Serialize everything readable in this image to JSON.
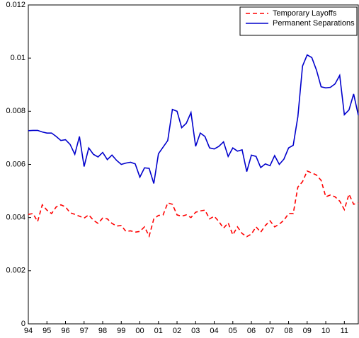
{
  "chart_data": {
    "type": "line",
    "x": [
      1994,
      1994.25,
      1994.5,
      1994.75,
      1995,
      1995.25,
      1995.5,
      1995.75,
      1996,
      1996.25,
      1996.5,
      1996.75,
      1997,
      1997.25,
      1997.5,
      1997.75,
      1998,
      1998.25,
      1998.5,
      1998.75,
      1999,
      1999.25,
      1999.5,
      1999.75,
      2000,
      2000.25,
      2000.5,
      2000.75,
      2001,
      2001.25,
      2001.5,
      2001.75,
      2002,
      2002.25,
      2002.5,
      2002.75,
      2003,
      2003.25,
      2003.5,
      2003.75,
      2004,
      2004.25,
      2004.5,
      2004.75,
      2005,
      2005.25,
      2005.5,
      2005.75,
      2006,
      2006.25,
      2006.5,
      2006.75,
      2007,
      2007.25,
      2007.5,
      2007.75,
      2008,
      2008.25,
      2008.5,
      2008.75,
      2009,
      2009.25,
      2009.5,
      2009.75,
      2010,
      2010.25,
      2010.5,
      2010.75,
      2011,
      2011.25,
      2011.5,
      2011.75
    ],
    "series": [
      {
        "name": "Temporary Layoffs",
        "color": "#ff0000",
        "linestyle": "dashed",
        "values": [
          0.00412,
          0.00415,
          0.00385,
          0.00448,
          0.00428,
          0.00415,
          0.0044,
          0.00448,
          0.0044,
          0.00418,
          0.00412,
          0.00405,
          0.00398,
          0.0041,
          0.0039,
          0.00378,
          0.00398,
          0.00395,
          0.00378,
          0.00368,
          0.0037,
          0.00348,
          0.0035,
          0.00345,
          0.00348,
          0.00365,
          0.0033,
          0.00395,
          0.00408,
          0.0041,
          0.00455,
          0.0045,
          0.0041,
          0.00405,
          0.0041,
          0.004,
          0.0042,
          0.00425,
          0.00428,
          0.00395,
          0.00405,
          0.00385,
          0.0036,
          0.0038,
          0.00335,
          0.00365,
          0.0034,
          0.00328,
          0.00338,
          0.00365,
          0.00345,
          0.0037,
          0.00388,
          0.00365,
          0.00375,
          0.0039,
          0.00415,
          0.00415,
          0.00515,
          0.00535,
          0.00575,
          0.00568,
          0.0056,
          0.0054,
          0.00478,
          0.00485,
          0.00478,
          0.00462,
          0.0043,
          0.00488,
          0.0045,
          0.00455
        ]
      },
      {
        "name": "Permanent Separations",
        "color": "#0000cc",
        "linestyle": "solid",
        "values": [
          0.00727,
          0.00728,
          0.00728,
          0.00722,
          0.00718,
          0.00718,
          0.00705,
          0.0069,
          0.00693,
          0.00675,
          0.00638,
          0.00705,
          0.00592,
          0.00662,
          0.00638,
          0.00628,
          0.00645,
          0.00618,
          0.00635,
          0.00615,
          0.006,
          0.00605,
          0.00608,
          0.00602,
          0.00552,
          0.00587,
          0.00585,
          0.00528,
          0.0064,
          0.00665,
          0.0069,
          0.00807,
          0.008,
          0.00738,
          0.00755,
          0.00795,
          0.00668,
          0.00718,
          0.00705,
          0.00662,
          0.00658,
          0.00668,
          0.00685,
          0.0063,
          0.00662,
          0.0065,
          0.00655,
          0.00573,
          0.00635,
          0.0063,
          0.00588,
          0.00602,
          0.00595,
          0.00633,
          0.006,
          0.0062,
          0.00662,
          0.00672,
          0.0078,
          0.0097,
          0.01012,
          0.01002,
          0.00955,
          0.00892,
          0.00888,
          0.0089,
          0.00903,
          0.00935,
          0.00787,
          0.00805,
          0.00865,
          0.00785
        ]
      }
    ],
    "xlim": [
      1994,
      2011.75
    ],
    "ylim": [
      0,
      0.012
    ],
    "xticks": [
      {
        "value": 1994,
        "label": "94"
      },
      {
        "value": 1995,
        "label": "95"
      },
      {
        "value": 1996,
        "label": "96"
      },
      {
        "value": 1997,
        "label": "97"
      },
      {
        "value": 1998,
        "label": "98"
      },
      {
        "value": 1999,
        "label": "99"
      },
      {
        "value": 2000,
        "label": "00"
      },
      {
        "value": 2001,
        "label": "01"
      },
      {
        "value": 2002,
        "label": "02"
      },
      {
        "value": 2003,
        "label": "03"
      },
      {
        "value": 2004,
        "label": "04"
      },
      {
        "value": 2005,
        "label": "05"
      },
      {
        "value": 2006,
        "label": "06"
      },
      {
        "value": 2007,
        "label": "07"
      },
      {
        "value": 2008,
        "label": "08"
      },
      {
        "value": 2009,
        "label": "09"
      },
      {
        "value": 2010,
        "label": "10"
      },
      {
        "value": 2011,
        "label": "11"
      }
    ],
    "yticks": [
      0,
      0.002,
      0.004,
      0.006,
      0.008,
      0.01,
      0.012
    ],
    "grid": false,
    "legend": "upper right"
  }
}
